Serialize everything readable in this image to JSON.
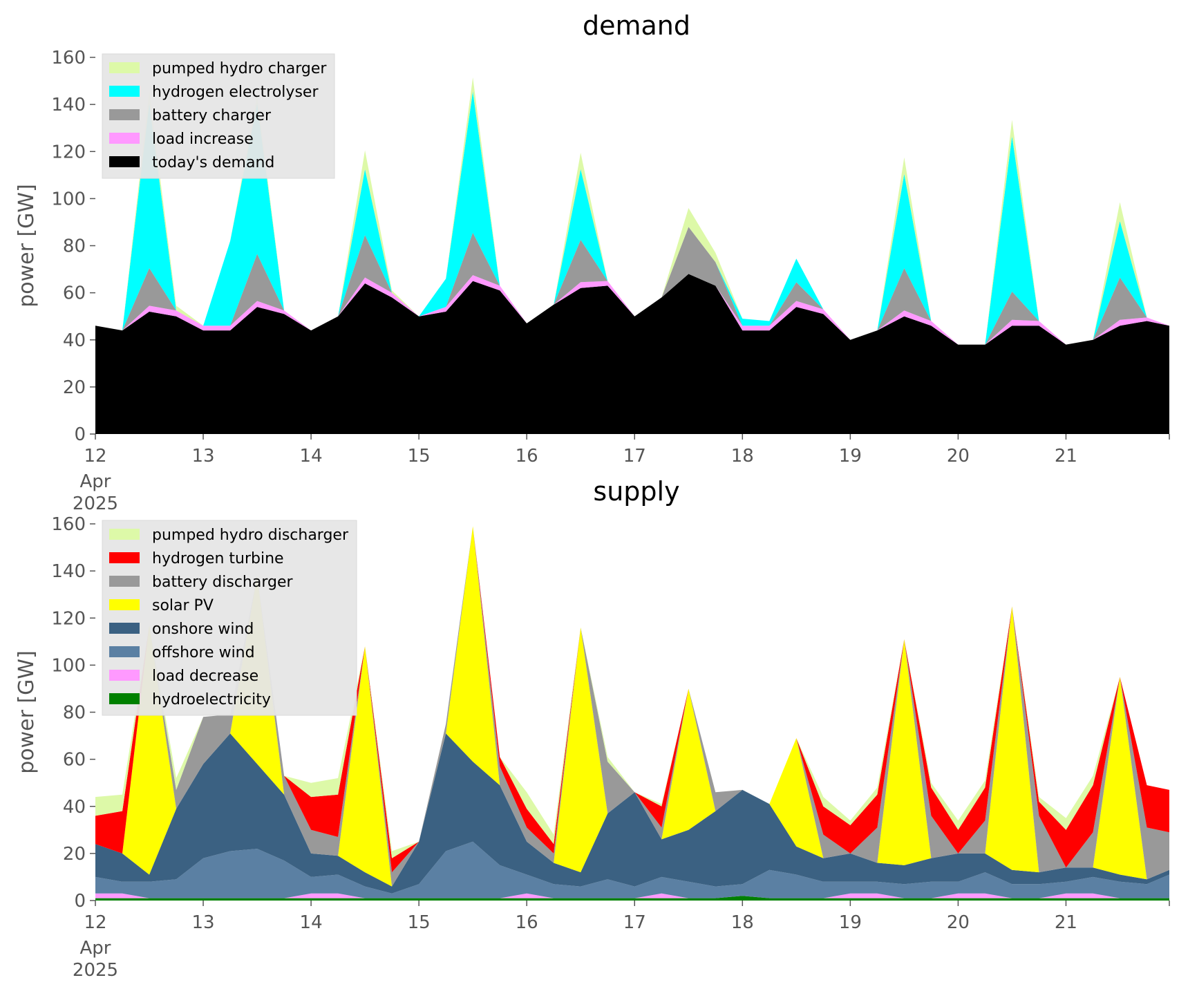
{
  "chart_data": [
    {
      "type": "area",
      "stacked": true,
      "title": "demand",
      "ylabel": "power [GW]",
      "xlabel": "",
      "ylim": [
        0,
        160
      ],
      "yticks": [
        "0",
        "20",
        "40",
        "60",
        "80",
        "100",
        "120",
        "140",
        "160"
      ],
      "xlim": [
        "2025-04-12",
        "2025-04-21T23:00"
      ],
      "xtick_labels": [
        "12",
        "13",
        "14",
        "15",
        "16",
        "17",
        "18",
        "19",
        "20",
        "21"
      ],
      "xtick_sublabel": [
        "Apr",
        "2025"
      ],
      "grid": false,
      "legend": "top-left",
      "x": [
        "2025-04-12T00",
        "2025-04-12T06",
        "2025-04-12T12",
        "2025-04-12T18",
        "2025-04-13T00",
        "2025-04-13T06",
        "2025-04-13T12",
        "2025-04-13T18",
        "2025-04-14T00",
        "2025-04-14T06",
        "2025-04-14T12",
        "2025-04-14T18",
        "2025-04-15T00",
        "2025-04-15T06",
        "2025-04-15T12",
        "2025-04-15T18",
        "2025-04-16T00",
        "2025-04-16T06",
        "2025-04-16T12",
        "2025-04-16T18",
        "2025-04-17T00",
        "2025-04-17T06",
        "2025-04-17T12",
        "2025-04-17T18",
        "2025-04-18T00",
        "2025-04-18T06",
        "2025-04-18T12",
        "2025-04-18T18",
        "2025-04-19T00",
        "2025-04-19T06",
        "2025-04-19T12",
        "2025-04-19T18",
        "2025-04-20T00",
        "2025-04-20T06",
        "2025-04-20T12",
        "2025-04-20T18",
        "2025-04-21T00",
        "2025-04-21T06",
        "2025-04-21T12",
        "2025-04-21T18",
        "2025-04-21T23"
      ],
      "series": [
        {
          "name": "today's demand",
          "color": "#000000",
          "values": [
            46,
            44,
            52,
            50,
            44,
            44,
            54,
            51,
            44,
            50,
            64,
            58,
            50,
            52,
            65,
            61,
            47,
            55,
            62,
            63,
            50,
            58,
            68,
            63,
            44,
            44,
            54,
            51,
            40,
            44,
            50,
            46,
            38,
            38,
            46,
            46,
            38,
            40,
            46,
            48,
            46
          ]
        },
        {
          "name": "load increase",
          "color": "#ff99ff",
          "values": [
            0,
            0,
            2.5,
            2.5,
            2,
            2,
            2.5,
            1.5,
            0,
            0,
            2.5,
            2,
            0,
            2,
            2.5,
            2,
            0,
            0,
            2.5,
            2,
            0,
            0,
            0,
            0,
            2,
            2,
            2.5,
            2,
            0,
            0,
            2.5,
            2,
            0,
            0,
            2.5,
            2,
            0,
            0,
            2.5,
            1.5,
            0
          ]
        },
        {
          "name": "battery charger",
          "color": "#999999",
          "values": [
            0,
            0,
            16,
            0,
            0,
            0,
            20,
            0,
            0,
            0,
            18,
            0,
            0,
            0,
            18,
            0,
            0,
            0,
            18,
            0,
            0,
            0,
            20,
            10,
            0,
            0,
            8,
            0,
            0,
            0,
            18,
            0,
            0,
            0,
            12,
            0,
            0,
            0,
            18,
            0,
            0
          ]
        },
        {
          "name": "hydrogen electrolyser",
          "color": "#00ffff",
          "values": [
            0,
            0,
            70,
            0,
            0,
            36,
            64,
            0,
            0,
            0,
            28,
            0,
            0,
            12,
            60,
            0,
            0,
            0,
            30,
            0,
            0,
            0,
            0,
            0,
            3,
            2,
            10,
            0,
            0,
            0,
            40,
            0,
            0,
            0,
            66,
            0,
            0,
            0,
            24,
            0,
            0
          ]
        },
        {
          "name": "pumped hydro charger",
          "color": "#ddf9a8",
          "values": [
            0,
            0,
            5,
            2,
            0,
            0,
            3,
            0,
            0,
            0,
            8,
            1,
            0,
            0,
            6,
            0,
            0,
            0,
            7,
            0,
            0,
            0,
            8,
            4,
            0,
            0,
            0,
            0,
            0,
            0,
            7,
            0,
            0,
            0,
            7,
            0,
            0,
            0,
            8,
            0,
            0
          ]
        }
      ]
    },
    {
      "type": "area",
      "stacked": true,
      "title": "supply",
      "ylabel": "power [GW]",
      "xlabel": "",
      "ylim": [
        0,
        160
      ],
      "yticks": [
        "0",
        "20",
        "40",
        "60",
        "80",
        "100",
        "120",
        "140",
        "160"
      ],
      "xlim": [
        "2025-04-12",
        "2025-04-21T23:00"
      ],
      "xtick_labels": [
        "12",
        "13",
        "14",
        "15",
        "16",
        "17",
        "18",
        "19",
        "20",
        "21"
      ],
      "xtick_sublabel": [
        "Apr",
        "2025"
      ],
      "grid": false,
      "legend": "top-left",
      "x": [
        "2025-04-12T00",
        "2025-04-12T06",
        "2025-04-12T12",
        "2025-04-12T18",
        "2025-04-13T00",
        "2025-04-13T06",
        "2025-04-13T12",
        "2025-04-13T18",
        "2025-04-14T00",
        "2025-04-14T06",
        "2025-04-14T12",
        "2025-04-14T18",
        "2025-04-15T00",
        "2025-04-15T06",
        "2025-04-15T12",
        "2025-04-15T18",
        "2025-04-16T00",
        "2025-04-16T06",
        "2025-04-16T12",
        "2025-04-16T18",
        "2025-04-17T00",
        "2025-04-17T06",
        "2025-04-17T12",
        "2025-04-17T18",
        "2025-04-18T00",
        "2025-04-18T06",
        "2025-04-18T12",
        "2025-04-18T18",
        "2025-04-19T00",
        "2025-04-19T06",
        "2025-04-19T12",
        "2025-04-19T18",
        "2025-04-20T00",
        "2025-04-20T06",
        "2025-04-20T12",
        "2025-04-20T18",
        "2025-04-21T00",
        "2025-04-21T06",
        "2025-04-21T12",
        "2025-04-21T18",
        "2025-04-21T23"
      ],
      "series": [
        {
          "name": "hydroelectricity",
          "color": "#008000",
          "values": [
            1,
            1,
            1,
            1,
            1,
            1,
            1,
            1,
            1,
            1,
            1,
            1,
            1,
            1,
            1,
            1,
            1,
            1,
            1,
            1,
            1,
            1,
            1,
            1,
            2,
            1,
            1,
            1,
            1,
            1,
            1,
            1,
            1,
            1,
            1,
            1,
            1,
            1,
            1,
            1,
            1
          ]
        },
        {
          "name": "load decrease",
          "color": "#ff99ff",
          "values": [
            2,
            2,
            0,
            0,
            0,
            0,
            0,
            0,
            2,
            2,
            0,
            0,
            0,
            0,
            0,
            0,
            2,
            0,
            0,
            0,
            0,
            2,
            0,
            0,
            0,
            0,
            0,
            0,
            2,
            2,
            0,
            0,
            2,
            2,
            0,
            0,
            2,
            2,
            0,
            0,
            0
          ]
        },
        {
          "name": "offshore wind",
          "color": "#5b80a3",
          "values": [
            7,
            5,
            7,
            8,
            17,
            20,
            21,
            16,
            7,
            8,
            5,
            2,
            6,
            20,
            24,
            14,
            8,
            6,
            5,
            8,
            5,
            7,
            7,
            5,
            5,
            12,
            10,
            7,
            5,
            5,
            6,
            7,
            5,
            9,
            6,
            6,
            5,
            7,
            7,
            6,
            10
          ]
        },
        {
          "name": "onshore wind",
          "color": "#3b6182",
          "values": [
            14,
            12,
            3,
            30,
            40,
            50,
            36,
            28,
            10,
            8,
            6,
            3,
            18,
            50,
            34,
            34,
            14,
            9,
            6,
            28,
            40,
            16,
            22,
            32,
            40,
            28,
            12,
            10,
            12,
            8,
            8,
            10,
            12,
            8,
            6,
            5,
            6,
            4,
            3,
            2,
            2
          ]
        },
        {
          "name": "solar PV",
          "color": "#ffff00",
          "values": [
            0,
            0,
            106,
            0,
            0,
            0,
            80,
            0,
            0,
            0,
            96,
            0,
            0,
            0,
            100,
            0,
            0,
            0,
            104,
            0,
            0,
            0,
            60,
            0,
            0,
            0,
            46,
            0,
            0,
            0,
            96,
            0,
            0,
            0,
            112,
            0,
            0,
            0,
            84,
            0,
            0
          ]
        },
        {
          "name": "battery discharger",
          "color": "#999999",
          "values": [
            0,
            0,
            0,
            8,
            20,
            8,
            0,
            8,
            10,
            8,
            0,
            6,
            0,
            4,
            0,
            8,
            6,
            4,
            0,
            22,
            0,
            5,
            0,
            8,
            0,
            0,
            0,
            10,
            0,
            15,
            0,
            18,
            0,
            14,
            0,
            24,
            0,
            15,
            0,
            22,
            16
          ]
        },
        {
          "name": "hydrogen turbine",
          "color": "#ff0000",
          "values": [
            12,
            18,
            0,
            0,
            0,
            0,
            0,
            0,
            14,
            18,
            0,
            6,
            0,
            0,
            0,
            4,
            8,
            4,
            0,
            0,
            0,
            9,
            0,
            0,
            0,
            0,
            0,
            12,
            12,
            14,
            0,
            12,
            10,
            14,
            0,
            6,
            16,
            20,
            0,
            18,
            18
          ]
        },
        {
          "name": "pumped hydro discharger",
          "color": "#ddf9a8",
          "values": [
            8,
            7,
            0,
            5,
            0,
            0,
            0,
            0,
            6,
            7,
            0,
            3,
            0,
            0,
            0,
            0,
            7,
            4,
            0,
            2,
            0,
            1,
            0,
            0,
            0,
            0,
            0,
            4,
            2,
            3,
            0,
            2,
            4,
            3,
            0,
            2,
            5,
            4,
            0,
            0,
            0
          ]
        }
      ]
    }
  ]
}
